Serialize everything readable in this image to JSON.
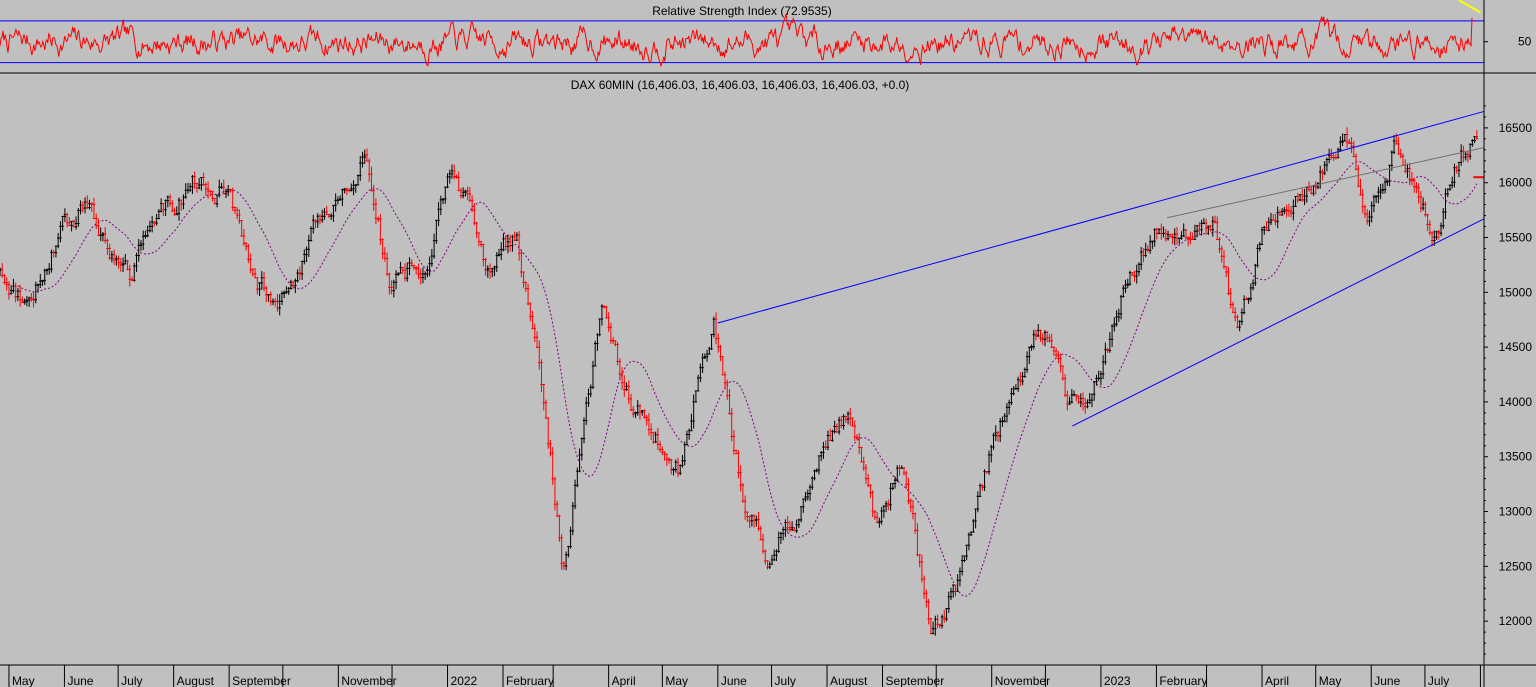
{
  "chart_data": [
    {
      "type": "line",
      "title": "Relative Strength Index (72.9535)",
      "ylim": [
        20,
        90
      ],
      "y_ticks": [
        50
      ],
      "levels": [
        70,
        30
      ],
      "level_color": "#0000ff",
      "series_color": "#ff0000",
      "trendline_color": "#ffff00",
      "seed": 7,
      "mean": 50,
      "amplitude": 18,
      "last_value": 72.9535,
      "trendline": {
        "from": [
          "2023-07-20",
          90
        ],
        "to": [
          "2023-08-01",
          78
        ]
      }
    },
    {
      "type": "candlestick",
      "title": "DAX 60MIN (16,406.03, 16,406.03, 16,406.03, 16,406.03, +0.0)",
      "ylim": [
        11600,
        16800
      ],
      "y_ticks": [
        12000,
        12500,
        13000,
        13500,
        14000,
        14500,
        15000,
        15500,
        16000,
        16500
      ],
      "x_range": [
        "2021-04-26",
        "2023-08-03"
      ],
      "up_color": "#000000",
      "down_color": "#ff0000",
      "moving_average": {
        "color": "#800080",
        "style": "dotted",
        "window_days": 28
      },
      "key_points": [
        [
          "2021-04-26",
          15200
        ],
        [
          "2021-05-12",
          14900
        ],
        [
          "2021-05-28",
          15500
        ],
        [
          "2021-06-14",
          15800
        ],
        [
          "2021-07-08",
          15100
        ],
        [
          "2021-07-22",
          15600
        ],
        [
          "2021-08-13",
          16000
        ],
        [
          "2021-08-31",
          15900
        ],
        [
          "2021-09-20",
          15100
        ],
        [
          "2021-10-06",
          14900
        ],
        [
          "2021-10-22",
          15600
        ],
        [
          "2021-11-17",
          16280
        ],
        [
          "2021-12-01",
          15100
        ],
        [
          "2021-12-20",
          15200
        ],
        [
          "2022-01-05",
          16270
        ],
        [
          "2022-01-27",
          15100
        ],
        [
          "2022-02-10",
          15600
        ],
        [
          "2022-02-24",
          14200
        ],
        [
          "2022-03-08",
          12450
        ],
        [
          "2022-03-29",
          14800
        ],
        [
          "2022-04-13",
          14100
        ],
        [
          "2022-04-27",
          13700
        ],
        [
          "2022-05-11",
          13400
        ],
        [
          "2022-05-31",
          14700
        ],
        [
          "2022-06-16",
          13150
        ],
        [
          "2022-06-30",
          12600
        ],
        [
          "2022-07-15",
          12950
        ],
        [
          "2022-07-29",
          13500
        ],
        [
          "2022-08-16",
          13950
        ],
        [
          "2022-08-30",
          12900
        ],
        [
          "2022-09-13",
          13500
        ],
        [
          "2022-09-29",
          11900
        ],
        [
          "2022-10-13",
          12300
        ],
        [
          "2022-11-01",
          13500
        ],
        [
          "2022-11-24",
          14550
        ],
        [
          "2022-12-05",
          14700
        ],
        [
          "2022-12-13",
          14000
        ],
        [
          "2022-12-28",
          13950
        ],
        [
          "2023-01-16",
          15150
        ],
        [
          "2023-02-03",
          15650
        ],
        [
          "2023-02-16",
          15500
        ],
        [
          "2023-03-06",
          15650
        ],
        [
          "2023-03-20",
          14500
        ],
        [
          "2023-04-03",
          15600
        ],
        [
          "2023-04-24",
          15900
        ],
        [
          "2023-05-19",
          16300
        ],
        [
          "2023-05-31",
          15700
        ],
        [
          "2023-06-16",
          16400
        ],
        [
          "2023-07-10",
          15500
        ],
        [
          "2023-07-19",
          16200
        ],
        [
          "2023-07-31",
          16406
        ]
      ],
      "trendlines": [
        {
          "color": "#0000ff",
          "from": [
            "2022-06-01",
            14720
          ],
          "to": [
            "2023-08-03",
            16650
          ]
        },
        {
          "color": "#0000ff",
          "from": [
            "2022-12-16",
            13780
          ],
          "to": [
            "2023-08-03",
            15670
          ]
        },
        {
          "color": "#707070",
          "from": [
            "2023-02-07",
            15680
          ],
          "to": [
            "2023-08-03",
            16320
          ]
        },
        {
          "color": "#ff0000",
          "from": [
            "2023-07-28",
            16050
          ],
          "to": [
            "2023-08-03",
            16050
          ]
        }
      ],
      "x_tick_labels": [
        {
          "date": "2021-05-01",
          "label": "May"
        },
        {
          "date": "2021-06-01",
          "label": "June"
        },
        {
          "date": "2021-07-01",
          "label": "July"
        },
        {
          "date": "2021-08-01",
          "label": "August"
        },
        {
          "date": "2021-09-01",
          "label": "September"
        },
        {
          "date": "2021-11-01",
          "label": "November"
        },
        {
          "date": "2022-01-01",
          "label": "2022"
        },
        {
          "date": "2022-02-01",
          "label": "February"
        },
        {
          "date": "2022-04-01",
          "label": "April"
        },
        {
          "date": "2022-05-01",
          "label": "May"
        },
        {
          "date": "2022-06-01",
          "label": "June"
        },
        {
          "date": "2022-07-01",
          "label": "July"
        },
        {
          "date": "2022-08-01",
          "label": "August"
        },
        {
          "date": "2022-09-01",
          "label": "September"
        },
        {
          "date": "2022-11-01",
          "label": "November"
        },
        {
          "date": "2023-01-01",
          "label": "2023"
        },
        {
          "date": "2023-02-01",
          "label": "February"
        },
        {
          "date": "2023-04-01",
          "label": "April"
        },
        {
          "date": "2023-05-01",
          "label": "May"
        },
        {
          "date": "2023-06-01",
          "label": "June"
        },
        {
          "date": "2023-07-01",
          "label": "July"
        }
      ],
      "x_minor_ticks": [
        "2021-10-01",
        "2021-12-01",
        "2022-03-01",
        "2022-10-01",
        "2022-12-01",
        "2023-03-01",
        "2023-08-01"
      ]
    }
  ]
}
